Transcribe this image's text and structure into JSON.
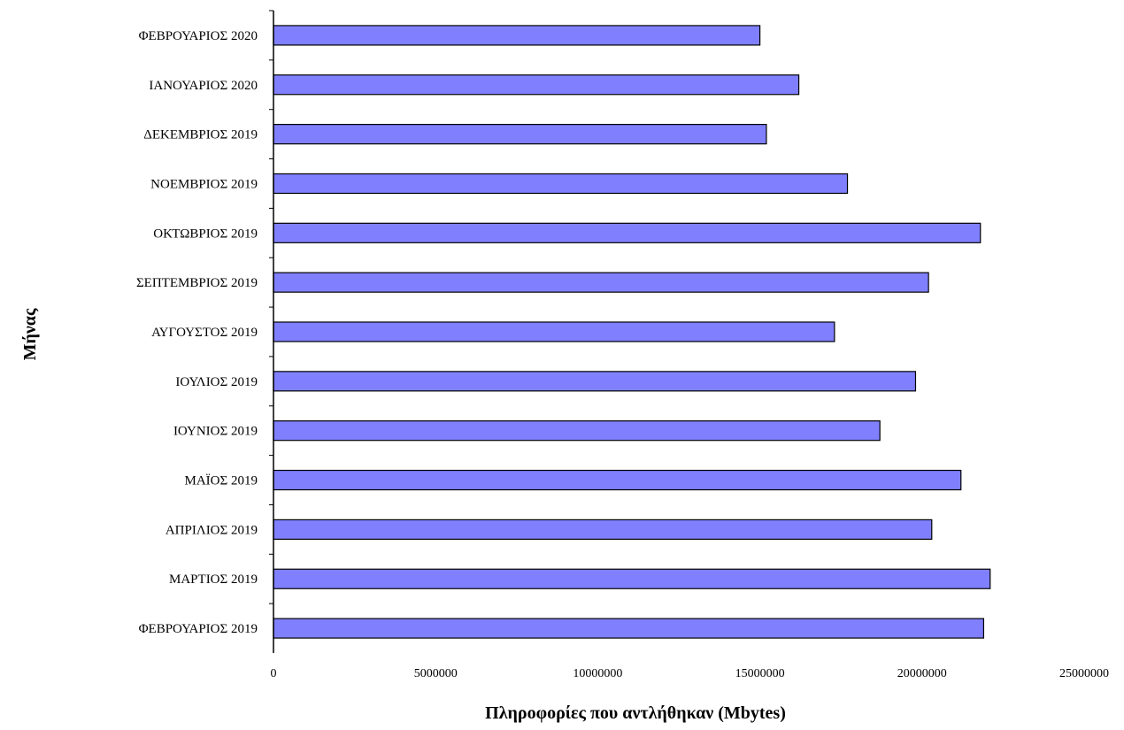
{
  "chart_data": {
    "type": "bar",
    "orientation": "horizontal",
    "categories": [
      "ΦΕΒΡΟΥΑΡΙΟΣ 2020",
      "ΙΑΝΟΥΑΡΙΟΣ 2020",
      "ΔΕΚΕΜΒΡΙΟΣ 2019",
      "ΝΟΕΜΒΡΙΟΣ 2019",
      "ΟΚΤΩΒΡΙΟΣ 2019",
      "ΣΕΠΤΕΜΒΡΙΟΣ 2019",
      "ΑΥΓΟΥΣΤΟΣ 2019",
      "ΙΟΥΛΙΟΣ 2019",
      "ΙΟΥΝΙΟΣ 2019",
      "ΜΑΪΟΣ 2019",
      "ΑΠΡΙΛΙΟΣ 2019",
      "ΜΑΡΤΙΟΣ 2019",
      "ΦΕΒΡΟΥΑΡΙΟΣ 2019"
    ],
    "values": [
      15000000,
      16200000,
      15200000,
      17700000,
      21800000,
      20200000,
      17300000,
      19800000,
      18700000,
      21200000,
      20300000,
      22100000,
      21900000
    ],
    "xlabel": "Πληροφορίες που αντλήθηκαν (Mbytes)",
    "ylabel": "Μήνας",
    "xlim": [
      0,
      25000000
    ],
    "xticks": [
      "0",
      "5000000",
      "10000000",
      "15000000",
      "20000000",
      "25000000"
    ],
    "grid": false,
    "bar_color": "#8080ff",
    "bar_edge_color": "#000000"
  }
}
